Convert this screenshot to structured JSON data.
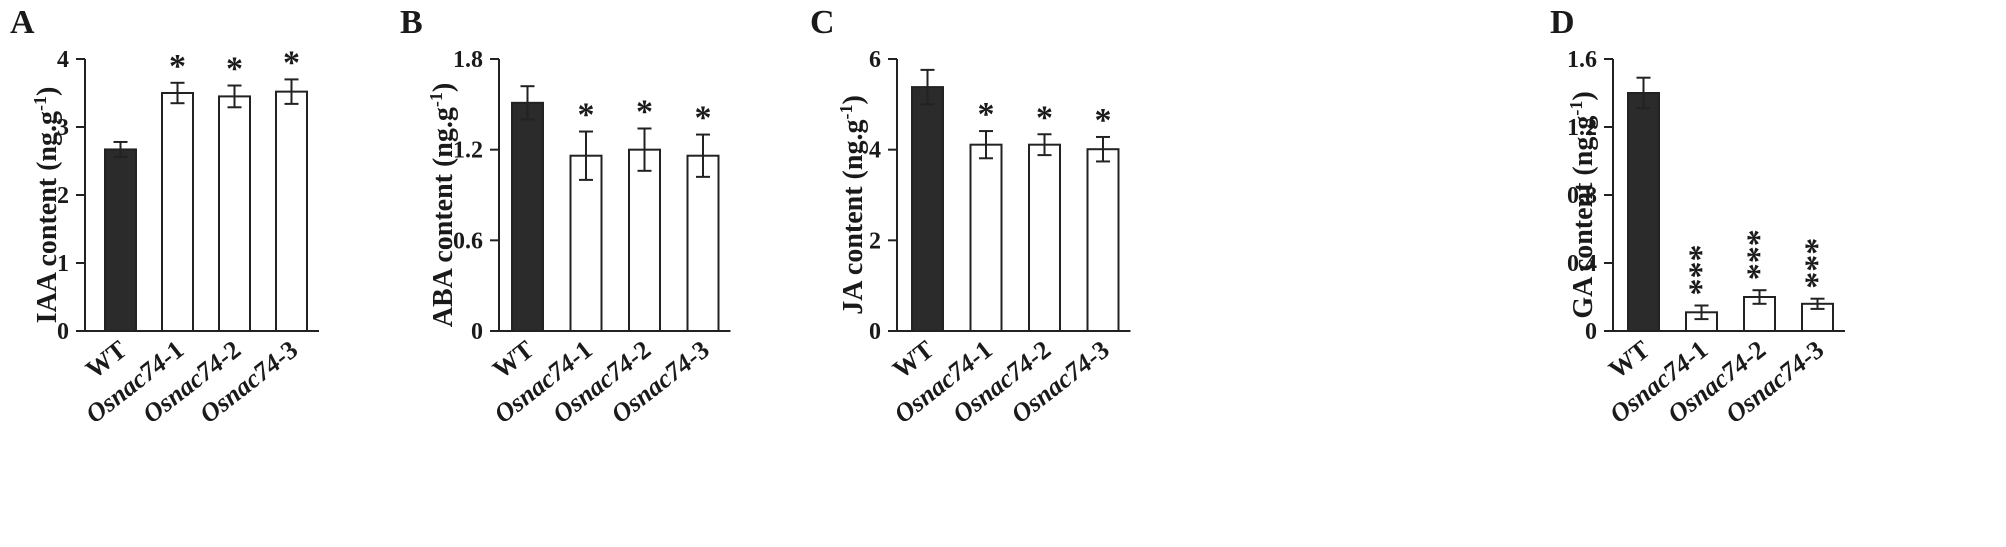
{
  "chart_data": [
    {
      "type": "bar",
      "panel": "A",
      "ylabel": "IAA content (ng.g",
      "ylabel_sup": "-1",
      "ylabel_close": ")",
      "ylim": [
        0,
        4
      ],
      "yticks": [
        0,
        1,
        2,
        3,
        4
      ],
      "ytick_labels": [
        "0",
        "1",
        "2",
        "3",
        "4"
      ],
      "categories": [
        {
          "prefix": "",
          "italic": "",
          "suffix": "WT"
        },
        {
          "prefix": "",
          "italic": "Osnac74",
          "suffix": "-1"
        },
        {
          "prefix": "",
          "italic": "Osnac74",
          "suffix": "-2"
        },
        {
          "prefix": "",
          "italic": "Osnac74",
          "suffix": "-3"
        }
      ],
      "values": [
        2.67,
        3.5,
        3.45,
        3.52
      ],
      "errors": [
        0.11,
        0.15,
        0.16,
        0.18
      ],
      "significance": [
        "",
        "*",
        "*",
        "*"
      ],
      "bar_colors": [
        "#2b2b2b",
        "#ffffff",
        "#ffffff",
        "#ffffff"
      ]
    },
    {
      "type": "bar",
      "panel": "B",
      "ylabel": "ABA content (ng.g",
      "ylabel_sup": "-1",
      "ylabel_close": ")",
      "ylim": [
        0,
        1.8
      ],
      "yticks": [
        0,
        0.6,
        1.2,
        1.8
      ],
      "ytick_labels": [
        "0",
        "0.6",
        "1.2",
        "1.8"
      ],
      "categories": [
        {
          "prefix": "",
          "italic": "",
          "suffix": "WT"
        },
        {
          "prefix": "",
          "italic": "Osnac74",
          "suffix": "-1"
        },
        {
          "prefix": "",
          "italic": "Osnac74",
          "suffix": "-2"
        },
        {
          "prefix": "",
          "italic": "Osnac74",
          "suffix": "-3"
        }
      ],
      "values": [
        1.51,
        1.16,
        1.2,
        1.16
      ],
      "errors": [
        0.11,
        0.16,
        0.14,
        0.14
      ],
      "significance": [
        "",
        "*",
        "*",
        "*"
      ],
      "bar_colors": [
        "#2b2b2b",
        "#ffffff",
        "#ffffff",
        "#ffffff"
      ]
    },
    {
      "type": "bar",
      "panel": "C",
      "ylabel": "JA content (ng.g",
      "ylabel_sup": "-1",
      "ylabel_close": ")",
      "ylim": [
        0,
        6
      ],
      "yticks": [
        0,
        2,
        4,
        6
      ],
      "ytick_labels": [
        "0",
        "2",
        "4",
        "6"
      ],
      "categories": [
        {
          "prefix": "",
          "italic": "",
          "suffix": "WT"
        },
        {
          "prefix": "",
          "italic": "Osnac74",
          "suffix": "-1"
        },
        {
          "prefix": "",
          "italic": "Osnac74",
          "suffix": "-2"
        },
        {
          "prefix": "",
          "italic": "Osnac74",
          "suffix": "-3"
        }
      ],
      "values": [
        5.38,
        4.11,
        4.11,
        4.01
      ],
      "errors": [
        0.38,
        0.3,
        0.23,
        0.27
      ],
      "significance": [
        "",
        "*",
        "*",
        "*"
      ],
      "bar_colors": [
        "#2b2b2b",
        "#ffffff",
        "#ffffff",
        "#ffffff"
      ]
    },
    {
      "type": "bar",
      "panel": "D",
      "ylabel": "GA content (ng.g",
      "ylabel_sup": "-1",
      "ylabel_close": ")",
      "ylim": [
        0,
        1.6
      ],
      "yticks": [
        0,
        0.4,
        0.8,
        1.2,
        1.6
      ],
      "ytick_labels": [
        "0",
        "0.4",
        "0.8",
        "1.2",
        "1.6"
      ],
      "categories": [
        {
          "prefix": "",
          "italic": "",
          "suffix": "WT"
        },
        {
          "prefix": "",
          "italic": "Osnac74",
          "suffix": "-1"
        },
        {
          "prefix": "",
          "italic": "Osnac74",
          "suffix": "-2"
        },
        {
          "prefix": "",
          "italic": "Osnac74",
          "suffix": "-3"
        }
      ],
      "values": [
        1.4,
        0.11,
        0.2,
        0.16
      ],
      "errors": [
        0.09,
        0.04,
        0.04,
        0.03
      ],
      "significance": [
        "",
        "***",
        "***",
        "***"
      ],
      "bar_colors": [
        "#2b2b2b",
        "#ffffff",
        "#ffffff",
        "#ffffff"
      ]
    }
  ]
}
